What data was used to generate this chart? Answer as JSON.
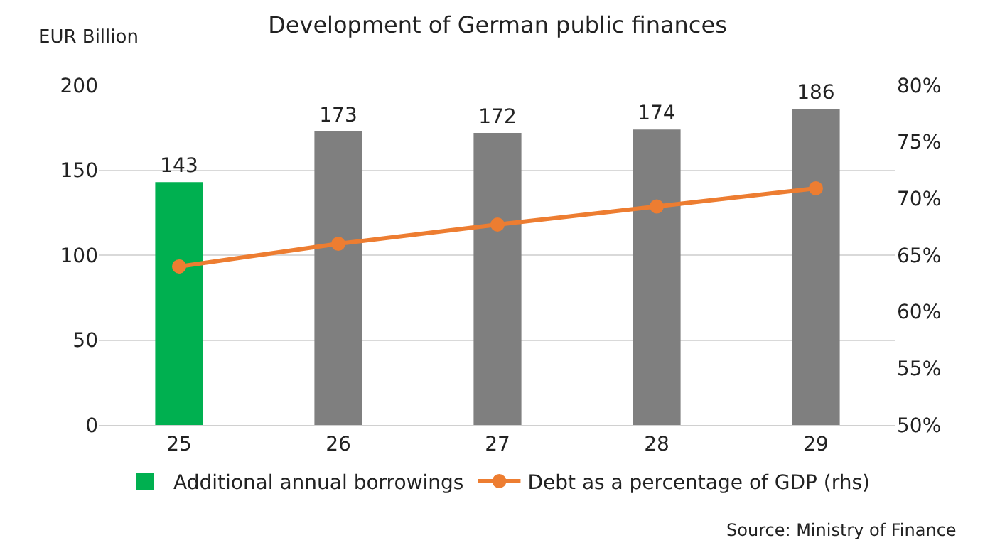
{
  "chart_data": {
    "type": "bar",
    "title": "Development of German public finances",
    "ylabel": "EUR Billion",
    "categories": [
      "25",
      "26",
      "27",
      "28",
      "29"
    ],
    "series": [
      {
        "name": "Additional annual borrowings",
        "color": "#00b050",
        "colors": [
          "#00b050",
          "#7f7f7f",
          "#7f7f7f",
          "#7f7f7f",
          "#7f7f7f"
        ],
        "values": [
          143,
          173,
          172,
          174,
          186
        ],
        "data_labels": true
      },
      {
        "name": "Debt as a percentage of GDP (rhs)",
        "type": "line",
        "axis": "y2",
        "color": "#ed7d31",
        "marker": "circle",
        "values": [
          64.0,
          66.0,
          67.7,
          69.3,
          70.9
        ]
      }
    ],
    "ylim": [
      0,
      200
    ],
    "yticks": [
      0,
      50,
      100,
      150,
      200
    ],
    "y2lim": [
      50,
      80
    ],
    "y2ticks": [
      {
        "value": 50,
        "label": "50%"
      },
      {
        "value": 55,
        "label": "55%"
      },
      {
        "value": 60,
        "label": "60%"
      },
      {
        "value": 65,
        "label": "65%"
      },
      {
        "value": 70,
        "label": "70%"
      },
      {
        "value": 75,
        "label": "75%"
      },
      {
        "value": 80,
        "label": "80%"
      }
    ],
    "grid": "y",
    "legend": "bottom",
    "annotations": [
      "Source: Ministry of Finance"
    ]
  }
}
